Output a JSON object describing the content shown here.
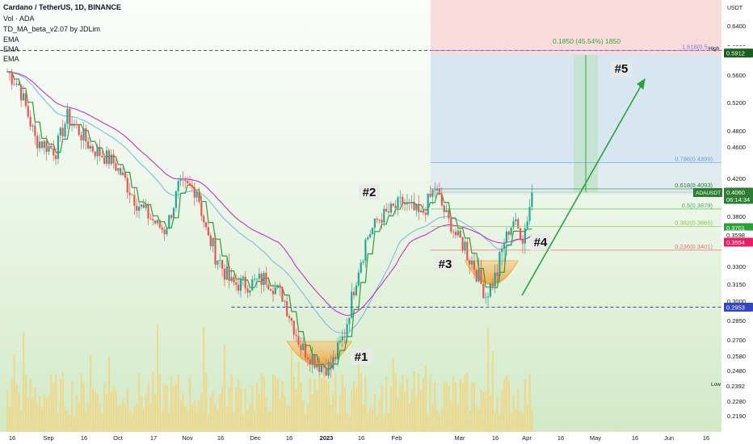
{
  "header": {
    "title": "Cardano / TetherUS, 1D, BINANCE",
    "vol": "Vol · ADA",
    "indicator": "TD_MA_beta_v2.07 by JDLim",
    "ema1": "EMA",
    "ema2": "EMA",
    "ema3": "EMA"
  },
  "axis": {
    "currency": "USDT",
    "ticks": [
      "0.6400",
      "0.6000",
      "0.5600",
      "0.5200",
      "0.4800",
      "0.4600",
      "0.4200",
      "0.3800",
      "0.3450",
      "0.3300",
      "0.3150",
      "0.3000",
      "0.2850",
      "0.2700",
      "0.2580",
      "0.2480",
      "0.2380",
      "0.2280",
      "0.2190"
    ],
    "x_labels": [
      "16",
      "Sep",
      "16",
      "Oct",
      "17",
      "Nov",
      "16",
      "Dec",
      "16",
      "2023",
      "16",
      "Feb",
      "Mar",
      "16",
      "Apr",
      "16",
      "May",
      "16",
      "Jun",
      "16"
    ]
  },
  "price_badges": {
    "high_text": "High",
    "high_value": "0.5948",
    "target": "0.5912",
    "symbol": "ADAUSDT",
    "last": "0.4060",
    "countdown": "06:14:34",
    "ema_a": "0.3701",
    "ema_b": "0.3598",
    "ema_c": "0.3554",
    "support": "0.2953",
    "low_text": "Low",
    "low_value": "0.2392"
  },
  "fib": {
    "f1618": "1.618(0.5...",
    "f786": "0.786(0.4399)",
    "f618": "0.618(0.4093)",
    "f50": "0.5(0.3879)",
    "f382": "0.382(0.3665)",
    "f236": "0.236(0.3401)"
  },
  "projection": "0.1850 (45.54%) 1850",
  "annotations": {
    "a1": "#1",
    "a2": "#2",
    "a3": "#3",
    "a4": "#4",
    "a5": "#5"
  },
  "colors": {
    "bull": "#26a69a",
    "bear": "#ef5350",
    "ema_green": "#2e9e3a",
    "ema_magenta": "#c71fc7",
    "ema_blue": "#73b6e6",
    "volume": "#f6d27a",
    "support_line": "#3347c0",
    "arrow": "#25a53a",
    "bowl": "#f5a623"
  },
  "chart_data": {
    "type": "candlestick",
    "title": "Cardano / TetherUS, 1D, BINANCE",
    "x_range": [
      "2022-08-15",
      "2023-06-20"
    ],
    "y_range": [
      0.215,
      0.655
    ],
    "levels": {
      "support": 0.2953,
      "high": 0.5948,
      "target": 0.5912,
      "last": 0.406
    },
    "fibonacci": {
      "1.618": 0.5948,
      "0.786": 0.4399,
      "0.618": 0.4093,
      "0.5": 0.3879,
      "0.382": 0.3665,
      "0.236": 0.3401
    },
    "anchors": [
      {
        "date": "2022-08-15",
        "price": 0.565
      },
      {
        "date": "2022-08-20",
        "price": 0.545
      },
      {
        "date": "2022-08-27",
        "price": 0.47
      },
      {
        "date": "2022-09-05",
        "price": 0.455
      },
      {
        "date": "2022-09-10",
        "price": 0.5
      },
      {
        "date": "2022-09-20",
        "price": 0.46
      },
      {
        "date": "2022-09-30",
        "price": 0.44
      },
      {
        "date": "2022-10-10",
        "price": 0.395
      },
      {
        "date": "2022-10-22",
        "price": 0.36
      },
      {
        "date": "2022-10-28",
        "price": 0.41
      },
      {
        "date": "2022-11-05",
        "price": 0.41
      },
      {
        "date": "2022-11-10",
        "price": 0.35
      },
      {
        "date": "2022-11-20",
        "price": 0.315
      },
      {
        "date": "2022-11-28",
        "price": 0.315
      },
      {
        "date": "2022-12-05",
        "price": 0.32
      },
      {
        "date": "2022-12-12",
        "price": 0.305
      },
      {
        "date": "2022-12-20",
        "price": 0.265
      },
      {
        "date": "2022-12-28",
        "price": 0.252
      },
      {
        "date": "2023-01-02",
        "price": 0.25
      },
      {
        "date": "2023-01-08",
        "price": 0.275
      },
      {
        "date": "2023-01-14",
        "price": 0.33
      },
      {
        "date": "2023-01-22",
        "price": 0.375
      },
      {
        "date": "2023-02-02",
        "price": 0.395
      },
      {
        "date": "2023-02-10",
        "price": 0.38
      },
      {
        "date": "2023-02-16",
        "price": 0.41
      },
      {
        "date": "2023-02-25",
        "price": 0.355
      },
      {
        "date": "2023-03-05",
        "price": 0.33
      },
      {
        "date": "2023-03-10",
        "price": 0.305
      },
      {
        "date": "2023-03-15",
        "price": 0.325
      },
      {
        "date": "2023-03-22",
        "price": 0.375
      },
      {
        "date": "2023-03-26",
        "price": 0.35
      },
      {
        "date": "2023-03-30",
        "price": 0.406
      }
    ]
  }
}
